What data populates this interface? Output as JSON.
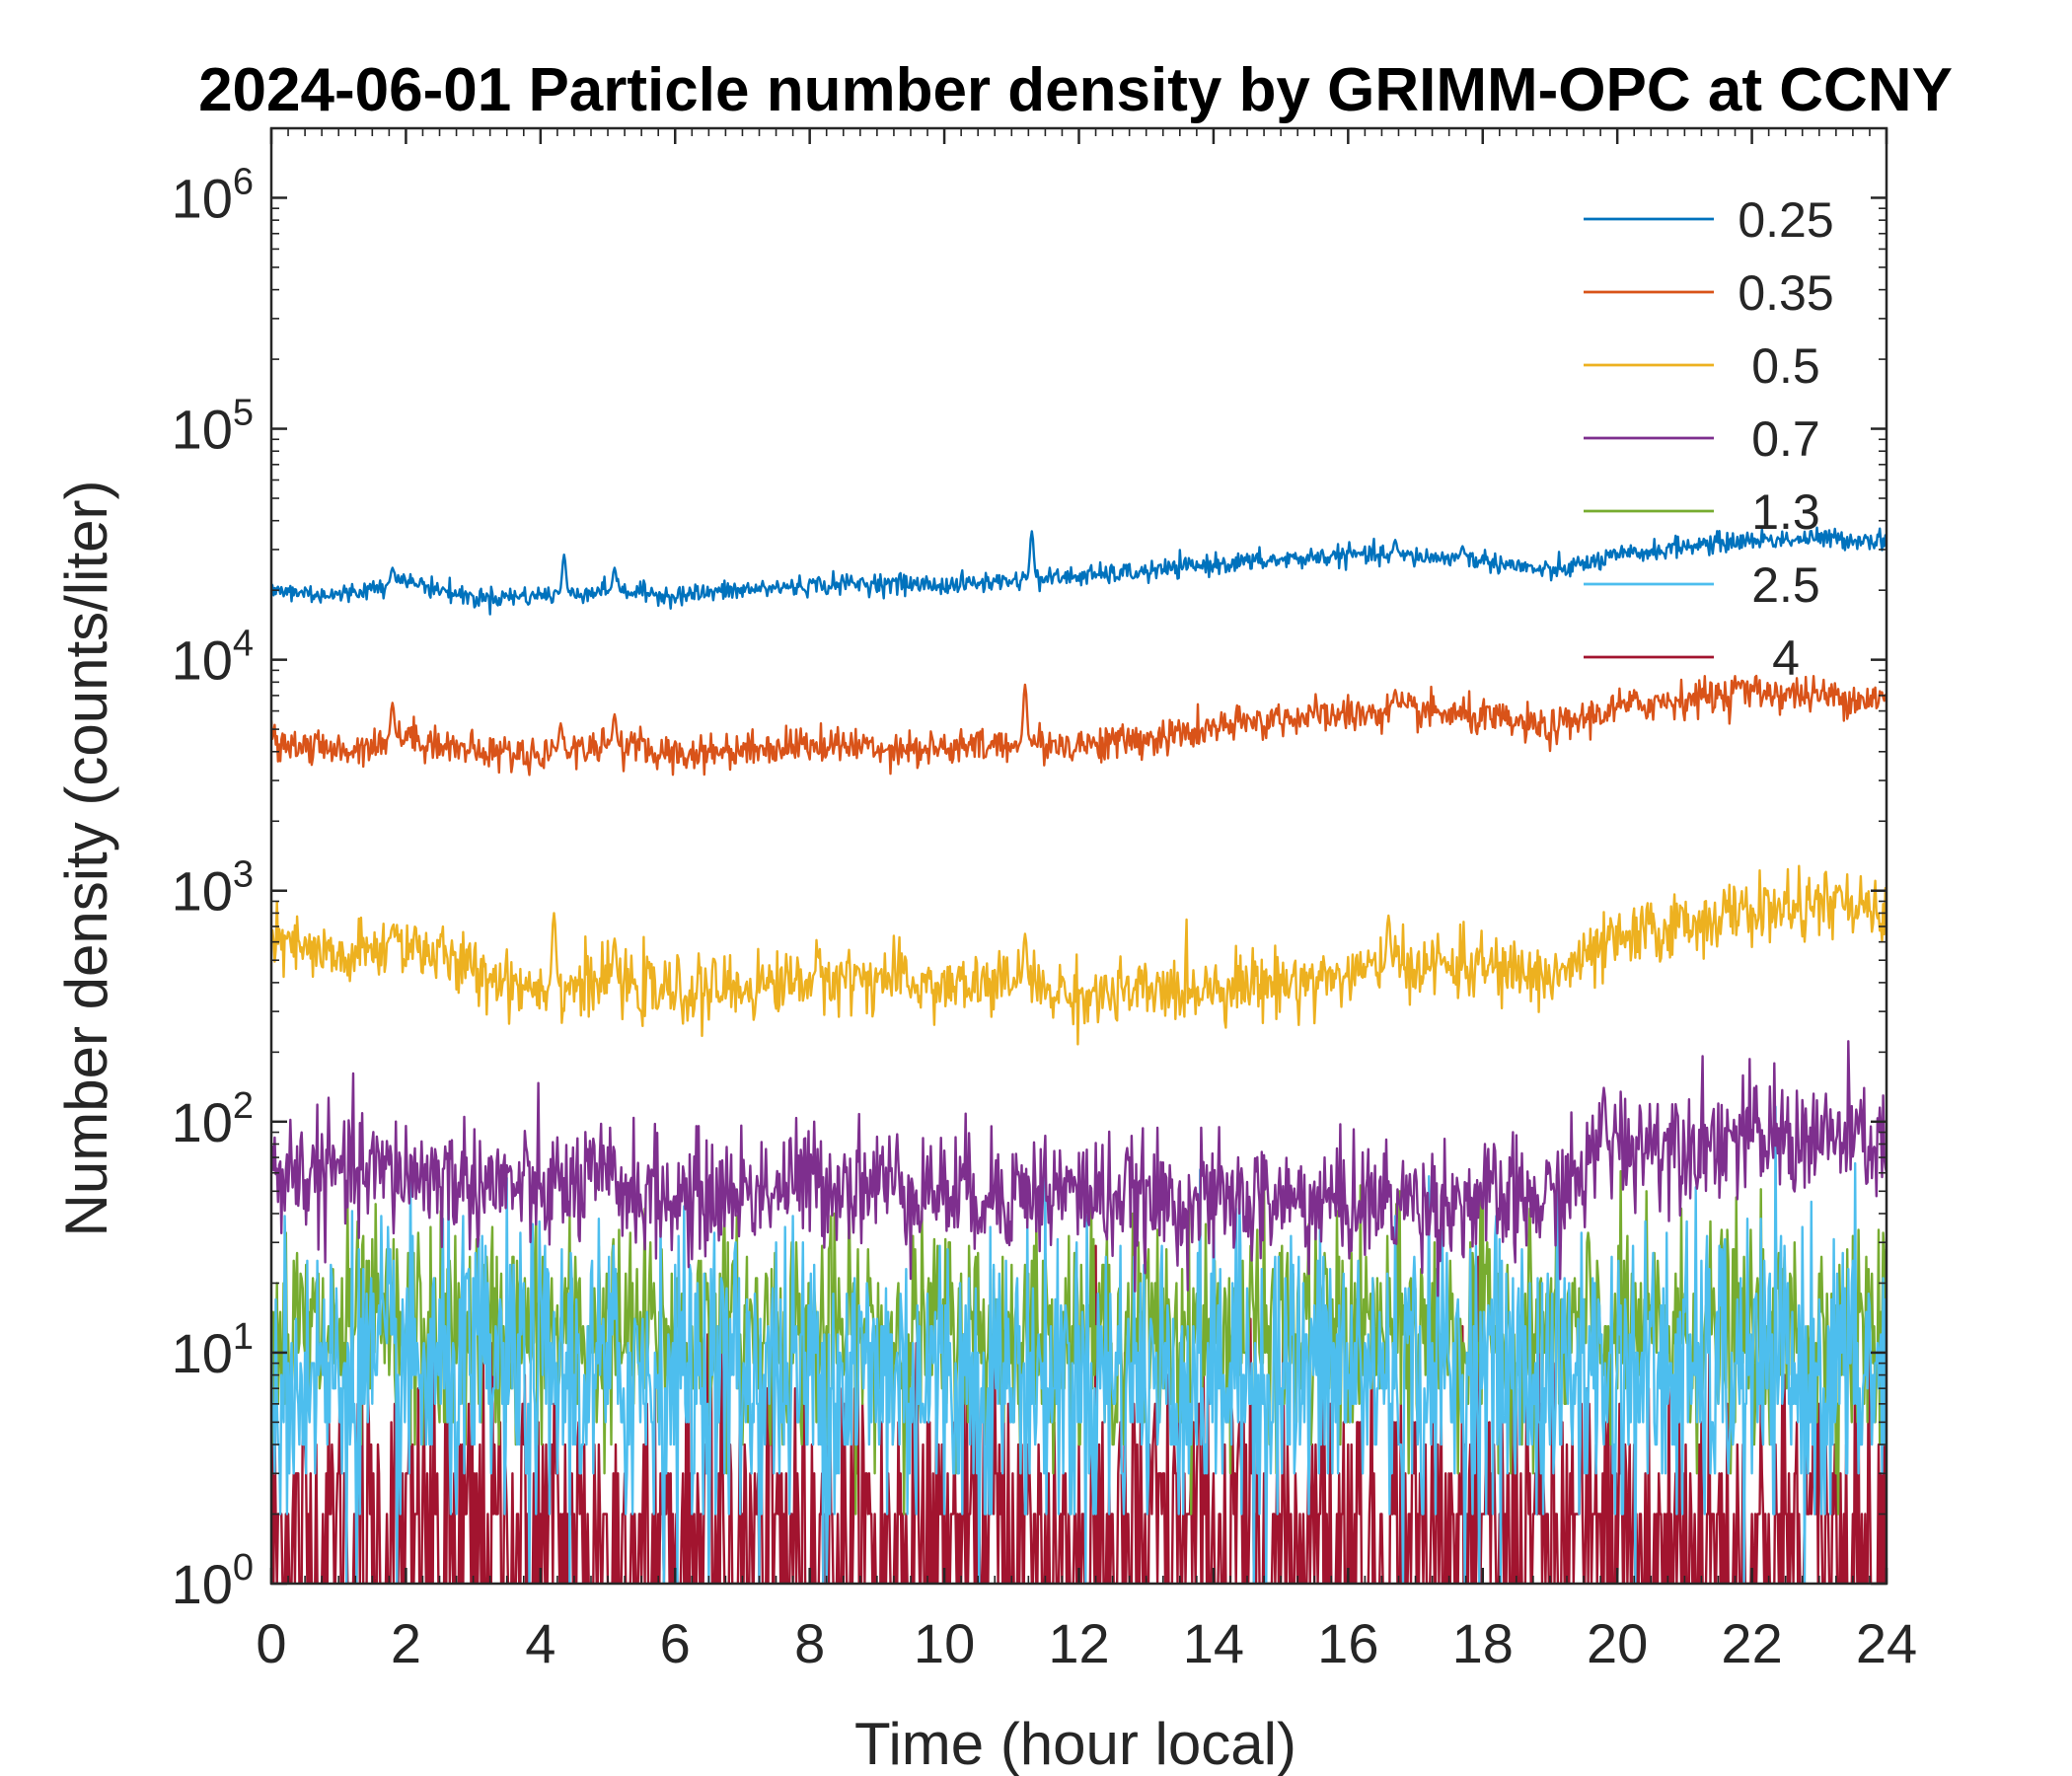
{
  "chart_data": {
    "type": "line",
    "title": "2024-06-01 Particle number density by GRIMM-OPC at CCNY",
    "xlabel": "Time (hour local)",
    "ylabel": "Number density (counts/liter)",
    "xlim": [
      0,
      24
    ],
    "ylim": [
      1,
      2000000
    ],
    "yscale": "log",
    "xticks": [
      "0",
      "2",
      "4",
      "6",
      "8",
      "10",
      "12",
      "14",
      "16",
      "18",
      "20",
      "22",
      "24"
    ],
    "yticks": [
      {
        "base": "10",
        "exp": "0",
        "value": 1
      },
      {
        "base": "10",
        "exp": "1",
        "value": 10
      },
      {
        "base": "10",
        "exp": "2",
        "value": 100
      },
      {
        "base": "10",
        "exp": "3",
        "value": 1000
      },
      {
        "base": "10",
        "exp": "4",
        "value": 10000
      },
      {
        "base": "10",
        "exp": "5",
        "value": 100000
      },
      {
        "base": "10",
        "exp": "6",
        "value": 1000000
      }
    ],
    "legend_position": "top-right",
    "x": [
      0,
      1,
      2,
      3,
      4,
      5,
      6,
      7,
      8,
      9,
      10,
      11,
      12,
      13,
      14,
      15,
      16,
      17,
      18,
      19,
      20,
      21,
      22,
      23,
      24
    ],
    "series": [
      {
        "name": "0.25",
        "color": "#0072BD",
        "noise": 0.05,
        "values": [
          20000,
          19000,
          22000,
          18500,
          19000,
          20000,
          19000,
          20000,
          21000,
          21500,
          21000,
          22000,
          23000,
          24000,
          26000,
          27000,
          28500,
          28000,
          27000,
          24000,
          28000,
          31000,
          33000,
          33500,
          33000
        ],
        "spikes": [
          [
            1.8,
            25000
          ],
          [
            4.35,
            28500
          ],
          [
            5.1,
            25000
          ],
          [
            11.3,
            36000
          ],
          [
            16.7,
            33000
          ],
          [
            17.7,
            31000
          ]
        ]
      },
      {
        "name": "0.35",
        "color": "#D95319",
        "noise": 0.09,
        "values": [
          4500,
          4000,
          4700,
          4000,
          3900,
          4300,
          3900,
          4100,
          4300,
          4200,
          4100,
          4300,
          4300,
          4500,
          5000,
          5600,
          5800,
          6000,
          5600,
          5000,
          6200,
          6800,
          7300,
          7000,
          6700
        ],
        "spikes": [
          [
            1.8,
            6500
          ],
          [
            4.3,
            5300
          ],
          [
            5.1,
            5800
          ],
          [
            11.2,
            7800
          ],
          [
            16.7,
            7400
          ],
          [
            21.8,
            8000
          ]
        ]
      },
      {
        "name": "0.5",
        "color": "#EDB120",
        "noise": 0.16,
        "values": [
          600,
          500,
          600,
          450,
          380,
          400,
          360,
          380,
          420,
          420,
          380,
          400,
          350,
          360,
          390,
          400,
          430,
          480,
          470,
          420,
          600,
          720,
          820,
          860,
          780
        ],
        "spikes": [
          [
            1.8,
            700
          ],
          [
            4.2,
            800
          ],
          [
            5.1,
            620
          ],
          [
            11.2,
            650
          ],
          [
            16.6,
            780
          ],
          [
            23.3,
            1050
          ]
        ]
      },
      {
        "name": "0.7",
        "color": "#7E2F8E",
        "noise": 0.3,
        "values": [
          60,
          60,
          60,
          55,
          50,
          55,
          45,
          50,
          55,
          55,
          50,
          50,
          50,
          45,
          45,
          45,
          45,
          45,
          45,
          45,
          80,
          85,
          85,
          85,
          80
        ],
        "spikes": [
          [
            19.8,
            140
          ]
        ]
      },
      {
        "name": "1.3",
        "color": "#77AC30",
        "noise": 0.55,
        "values": [
          12,
          12,
          12,
          12,
          12,
          12,
          12,
          12,
          12,
          12,
          12,
          12,
          12,
          12,
          12,
          12,
          12,
          12,
          12,
          12,
          12,
          12,
          12,
          12,
          12
        ],
        "spikes": []
      },
      {
        "name": "2.5",
        "color": "#4DBEEE",
        "noise": 0.75,
        "values": [
          8,
          8,
          8,
          8,
          8,
          8,
          8,
          8,
          8,
          8,
          8,
          8,
          8,
          8,
          8,
          8,
          8,
          8,
          8,
          8,
          8,
          8,
          8,
          8,
          8
        ],
        "spikes": []
      },
      {
        "name": "4",
        "color": "#A2142F",
        "noise": 0.9,
        "values": [
          1.5,
          1.5,
          1.5,
          1.5,
          1.5,
          1.5,
          1.5,
          1.5,
          1.5,
          1.5,
          1.5,
          1.5,
          1.5,
          1.5,
          1.5,
          1.5,
          1.5,
          1.5,
          1.5,
          1.5,
          1.5,
          1.5,
          1.5,
          1.5,
          1.5
        ],
        "spikes": []
      }
    ]
  }
}
